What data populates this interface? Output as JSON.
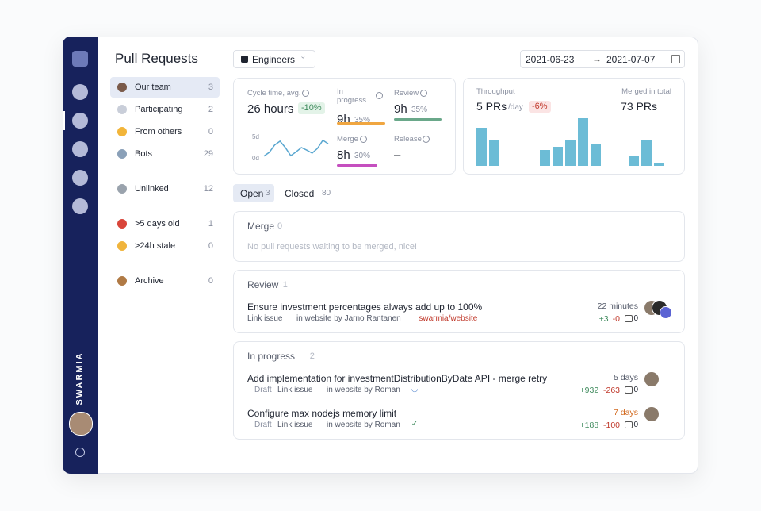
{
  "sidebar": {
    "brand": "SWARMIA"
  },
  "header": {
    "title": "Pull Requests",
    "team": "Engineers",
    "date_from": "2021-06-23",
    "date_to": "2021-07-07"
  },
  "nav": [
    {
      "label": "Our team",
      "count": 3,
      "selected": true,
      "icon": "#7a5a4a"
    },
    {
      "label": "Participating",
      "count": 2,
      "icon": "#c9ced9"
    },
    {
      "label": "From others",
      "count": 0,
      "icon": "#f2b53a"
    },
    {
      "label": "Bots",
      "count": 29,
      "icon": "#8aa0b8"
    },
    {
      "label": "Unlinked",
      "count": 12,
      "icon": "#9aa3ad",
      "gap": true
    },
    {
      "label": ">5 days old",
      "count": 1,
      "icon": "#d9453a",
      "gap": true
    },
    {
      "label": ">24h stale",
      "count": 0,
      "icon": "#f0b43c"
    },
    {
      "label": "Archive",
      "count": 0,
      "icon": "#b07a45",
      "gap": true
    }
  ],
  "metrics": {
    "cycle_time": {
      "label": "Cycle time, avg.",
      "value": "26 hours",
      "change": "-10%"
    },
    "sparkline": {
      "yticks": [
        {
          "value": 5,
          "label": "5d"
        },
        {
          "value": 0,
          "label": "0d"
        }
      ],
      "ylim": [
        0,
        5
      ],
      "values": [
        0.6,
        1.5,
        3.2,
        4.1,
        2.6,
        0.7,
        1.6,
        2.6,
        2.0,
        1.3,
        2.4,
        4.3,
        3.5
      ]
    },
    "in_progress": {
      "label": "In progress",
      "value": "9h",
      "share": "35%",
      "color": "#f0a640"
    },
    "review": {
      "label": "Review",
      "value": "9h",
      "share": "35%",
      "color": "#6aa88a"
    },
    "merge": {
      "label": "Merge",
      "value": "8h",
      "share": "30%",
      "color": "#c54fbf"
    },
    "release": {
      "label": "Release",
      "value": "–"
    }
  },
  "throughput": {
    "label": "Throughput",
    "value": "5 PRs",
    "unit": "/day",
    "change": "-6%",
    "merged_label": "Merged in total",
    "merged_value": "73 PRs",
    "color": "#6cbcd6",
    "values": [
      12,
      8,
      0,
      0,
      0,
      5,
      6,
      8,
      15,
      7,
      0,
      0,
      3,
      8,
      1
    ]
  },
  "tabs": [
    {
      "label": "Open",
      "count": 3,
      "selected": true
    },
    {
      "label": "Closed",
      "count": 80
    }
  ],
  "sections": [
    {
      "title": "Merge",
      "count": 0,
      "empty": "No pull requests waiting to be merged, nice!"
    },
    {
      "title": "Review",
      "count": 1,
      "items": [
        {
          "title": "Ensure investment percentages always add up to 100%",
          "link": "Link issue",
          "location": "in website by Jarno Rantanen",
          "repo": "swarmia/website",
          "age": "22 minutes",
          "additions": "+3",
          "deletions": "-0",
          "comments": 0,
          "reviewers": 3
        }
      ]
    },
    {
      "title": "In progress",
      "count": 2,
      "items": [
        {
          "draft": "Draft",
          "title": "Add implementation for investmentDistributionByDate API - merge retry",
          "link": "Link issue",
          "location": "in website by Roman",
          "age": "5 days",
          "additions": "+932",
          "deletions": "-263",
          "comments": 0,
          "reviewers": 1
        },
        {
          "draft": "Draft",
          "title": "Configure max nodejs memory limit",
          "link": "Link issue",
          "location": "in website by Roman",
          "age": "7 days",
          "age_warning": true,
          "additions": "+188",
          "deletions": "-100",
          "comments": 0,
          "reviewers": 1,
          "checked": true
        }
      ]
    }
  ]
}
